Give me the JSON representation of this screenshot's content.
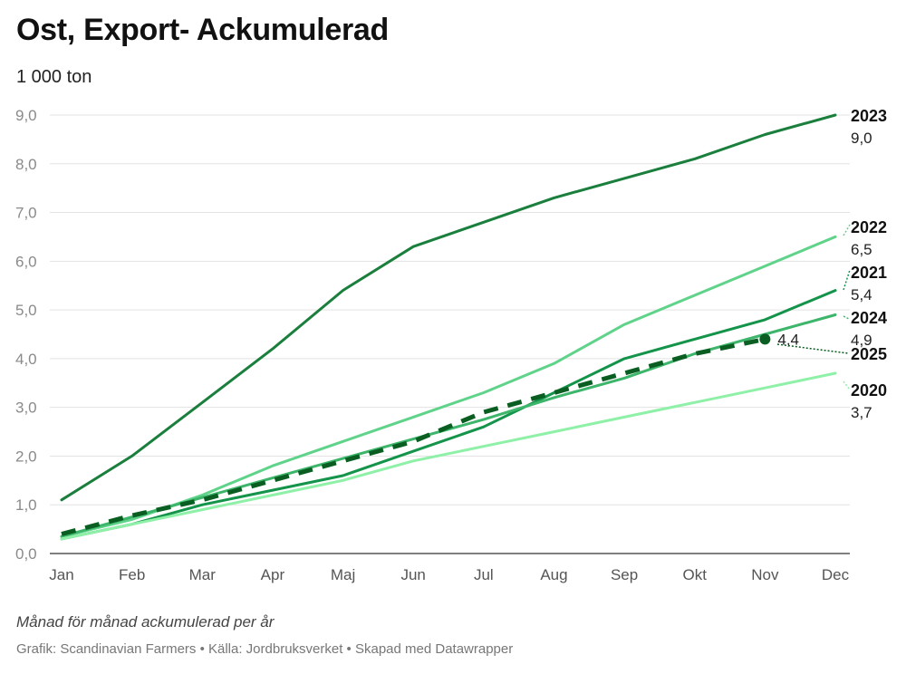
{
  "header": {
    "title": "Ost, Export- Ackumulerad",
    "unit": "1 000 ton"
  },
  "footer": {
    "note": "Månad för månad ackumulerad per år",
    "credits": "Grafik: Scandinavian Farmers • Källa: Jordbruksverket • Skapad med Datawrapper"
  },
  "chart_data": {
    "type": "line",
    "title": "Ost, Export- Ackumulerad",
    "ylabel": "1 000 ton",
    "xlabel": "Månad för månad ackumulerad per år",
    "categories": [
      "Jan",
      "Feb",
      "Mar",
      "Apr",
      "Maj",
      "Jun",
      "Jul",
      "Aug",
      "Sep",
      "Okt",
      "Nov",
      "Dec"
    ],
    "ylim": [
      0,
      9
    ],
    "yticks": [
      "0,0",
      "1,0",
      "2,0",
      "3,0",
      "4,0",
      "5,0",
      "6,0",
      "7,0",
      "8,0",
      "9,0"
    ],
    "grid": true,
    "legend": "direct labels at line ends (right)",
    "series": [
      {
        "name": "2023",
        "end_label": "9,0",
        "color": "#1a7f3c",
        "dashed": false,
        "values": [
          1.1,
          2.0,
          3.1,
          4.2,
          5.4,
          6.3,
          6.8,
          7.3,
          7.7,
          8.1,
          8.6,
          9.0
        ]
      },
      {
        "name": "2022",
        "end_label": "6,5",
        "color": "#5fd38a",
        "dashed": false,
        "values": [
          0.35,
          0.7,
          1.2,
          1.8,
          2.3,
          2.8,
          3.3,
          3.9,
          4.7,
          5.3,
          5.9,
          6.5
        ]
      },
      {
        "name": "2021",
        "end_label": "5,4",
        "color": "#14944a",
        "dashed": false,
        "values": [
          0.3,
          0.6,
          1.0,
          1.3,
          1.6,
          2.1,
          2.6,
          3.3,
          4.0,
          4.4,
          4.8,
          5.4
        ]
      },
      {
        "name": "2024",
        "end_label": "4,9",
        "color": "#3db56a",
        "dashed": false,
        "values": [
          0.35,
          0.75,
          1.15,
          1.55,
          1.95,
          2.35,
          2.75,
          3.2,
          3.6,
          4.1,
          4.5,
          4.9
        ]
      },
      {
        "name": "2020",
        "end_label": "3,7",
        "color": "#8ff0a8",
        "dashed": false,
        "values": [
          0.3,
          0.6,
          0.9,
          1.2,
          1.5,
          1.9,
          2.2,
          2.5,
          2.8,
          3.1,
          3.4,
          3.7
        ]
      },
      {
        "name": "2025",
        "end_label": "4,4",
        "color": "#0b5e22",
        "dashed": true,
        "values": [
          0.4,
          0.78,
          1.1,
          1.5,
          1.9,
          2.3,
          2.9,
          3.3,
          3.7,
          4.1,
          4.4,
          null
        ]
      }
    ]
  }
}
